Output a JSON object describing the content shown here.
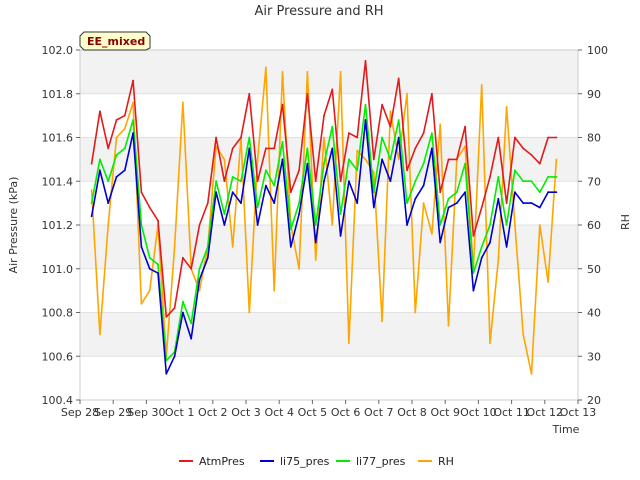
{
  "chart_data": {
    "type": "line",
    "title": "Air Pressure and RH",
    "xlabel": "Time",
    "ylabel": "Air Pressure (kPa)",
    "y2label": "RH",
    "badge": "EE_mixed",
    "x_ticks": [
      "Sep 28",
      "Sep 29",
      "Sep 30",
      "Oct 1",
      "Oct 2",
      "Oct 3",
      "Oct 4",
      "Oct 5",
      "Oct 6",
      "Oct 7",
      "Oct 8",
      "Oct 9",
      "Oct 10",
      "Oct 11",
      "Oct 12",
      "Oct 13"
    ],
    "x_range": [
      "Sep 28",
      "Oct 13"
    ],
    "ylim": [
      100.4,
      102.0
    ],
    "y_ticks": [
      "100.4",
      "100.6",
      "100.8",
      "101.0",
      "101.2",
      "101.4",
      "101.6",
      "101.8",
      "102.0"
    ],
    "y2lim": [
      20,
      100
    ],
    "y2_ticks": [
      "20",
      "30",
      "40",
      "50",
      "60",
      "70",
      "80",
      "90",
      "100"
    ],
    "grid": "horizontal bands",
    "legend_position": "bottom",
    "x_days": [
      0.35,
      0.6,
      0.85,
      1.1,
      1.35,
      1.6,
      1.85,
      2.1,
      2.35,
      2.6,
      2.85,
      3.1,
      3.35,
      3.6,
      3.85,
      4.1,
      4.35,
      4.6,
      4.85,
      5.1,
      5.35,
      5.6,
      5.85,
      6.1,
      6.35,
      6.6,
      6.85,
      7.1,
      7.35,
      7.6,
      7.85,
      8.1,
      8.35,
      8.6,
      8.85,
      9.1,
      9.35,
      9.6,
      9.85,
      10.1,
      10.35,
      10.6,
      10.85,
      11.1,
      11.35,
      11.6,
      11.85,
      12.1,
      12.35,
      12.6,
      12.85,
      13.1,
      13.35,
      13.6,
      13.85,
      14.1,
      14.35
    ],
    "series": [
      {
        "name": "AtmPres",
        "color": "#e31a1c",
        "axis": "left",
        "values": [
          101.48,
          101.72,
          101.55,
          101.68,
          101.7,
          101.86,
          101.35,
          101.28,
          101.22,
          100.78,
          100.82,
          101.05,
          101.0,
          101.2,
          101.3,
          101.6,
          101.4,
          101.55,
          101.6,
          101.8,
          101.4,
          101.55,
          101.55,
          101.75,
          101.35,
          101.45,
          101.8,
          101.4,
          101.7,
          101.82,
          101.4,
          101.62,
          101.6,
          101.95,
          101.5,
          101.75,
          101.65,
          101.87,
          101.45,
          101.55,
          101.62,
          101.8,
          101.35,
          101.5,
          101.5,
          101.65,
          101.15,
          101.28,
          101.42,
          101.6,
          101.3,
          101.6,
          101.55,
          101.52,
          101.48,
          101.6,
          101.6
        ]
      },
      {
        "name": "li75_pres",
        "color": "#0000cc",
        "axis": "left",
        "values": [
          101.24,
          101.45,
          101.3,
          101.42,
          101.45,
          101.62,
          101.1,
          101.0,
          100.98,
          100.52,
          100.6,
          100.8,
          100.68,
          100.95,
          101.05,
          101.35,
          101.2,
          101.35,
          101.3,
          101.55,
          101.2,
          101.38,
          101.3,
          101.5,
          101.1,
          101.25,
          101.48,
          101.12,
          101.4,
          101.55,
          101.15,
          101.4,
          101.3,
          101.68,
          101.28,
          101.5,
          101.4,
          101.6,
          101.2,
          101.32,
          101.38,
          101.55,
          101.12,
          101.28,
          101.3,
          101.35,
          100.9,
          101.05,
          101.12,
          101.32,
          101.1,
          101.35,
          101.3,
          101.3,
          101.28,
          101.35,
          101.35
        ]
      },
      {
        "name": "li77_pres",
        "color": "#00ee00",
        "axis": "left",
        "values": [
          101.3,
          101.5,
          101.4,
          101.52,
          101.55,
          101.68,
          101.2,
          101.05,
          101.02,
          100.58,
          100.62,
          100.85,
          100.75,
          101.0,
          101.1,
          101.4,
          101.25,
          101.42,
          101.4,
          101.6,
          101.28,
          101.45,
          101.38,
          101.58,
          101.18,
          101.3,
          101.55,
          101.2,
          101.48,
          101.65,
          101.25,
          101.5,
          101.45,
          101.75,
          101.35,
          101.6,
          101.5,
          101.68,
          101.3,
          101.4,
          101.48,
          101.62,
          101.2,
          101.32,
          101.35,
          101.48,
          100.98,
          101.1,
          101.2,
          101.42,
          101.2,
          101.45,
          101.4,
          101.4,
          101.35,
          101.42,
          101.42
        ]
      },
      {
        "name": "RH",
        "color": "#ffa500",
        "axis": "right",
        "values": [
          68,
          35,
          60,
          80,
          82,
          88,
          42,
          45,
          60,
          30,
          55,
          88,
          50,
          45,
          55,
          78,
          75,
          55,
          80,
          40,
          75,
          96,
          45,
          95,
          60,
          50,
          95,
          52,
          80,
          60,
          95,
          33,
          77,
          75,
          72,
          38,
          86,
          75,
          90,
          40,
          65,
          58,
          83,
          37,
          75,
          78,
          50,
          92,
          33,
          52,
          87,
          60,
          35,
          26,
          60,
          47,
          75
        ]
      }
    ]
  }
}
